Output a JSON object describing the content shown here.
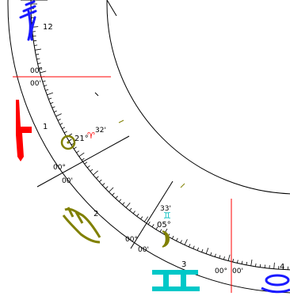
{
  "house_numbers": [
    "12",
    "1",
    "2",
    "3",
    "4"
  ],
  "house_cusps": [
    {
      "degree": "00°",
      "minute": "00'"
    },
    {
      "degree": "00°",
      "minute": "00'"
    },
    {
      "degree": "00°",
      "minute": "00'"
    },
    {
      "degree": "00°",
      "minute": "00'"
    }
  ],
  "planets": {
    "sun": {
      "glyph": "☉",
      "degree": "21°",
      "sign_glyph": "♈",
      "minute": "32'",
      "color": "#808000",
      "sign_color": "#ff0000"
    },
    "moon": {
      "glyph": "☽",
      "degree": "05°",
      "sign_glyph": "♊",
      "minute": "33'",
      "color": "#808000",
      "sign_color": "#00bfbf"
    }
  },
  "sign_colors": {
    "aquarius": "#1a1aff",
    "pisces_aries_fire": "#ff0000",
    "taurus_earth": "#808000",
    "gemini_air": "#00c8c8",
    "cancer_water": "#1a1aff"
  },
  "axis_color": "#ff0000"
}
